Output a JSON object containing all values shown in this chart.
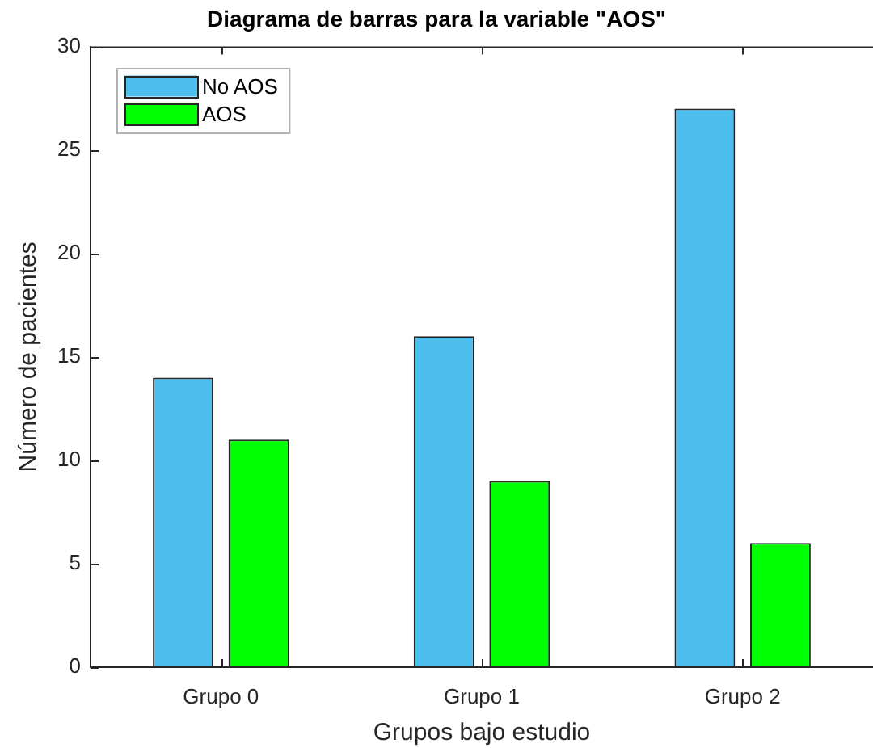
{
  "chart_data": {
    "type": "bar",
    "title": "Diagrama de barras para la variable \"AOS\"",
    "xlabel": "Grupos bajo estudio",
    "ylabel": "Número de pacientes",
    "categories": [
      "Grupo 0",
      "Grupo 1",
      "Grupo 2"
    ],
    "series": [
      {
        "name": "No AOS",
        "color": "#4dbeee",
        "values": [
          14,
          16,
          27
        ]
      },
      {
        "name": "AOS",
        "color": "#00ff00",
        "values": [
          11,
          9,
          6
        ]
      }
    ],
    "ylim": [
      0,
      30
    ],
    "yticks": [
      0,
      5,
      10,
      15,
      20,
      25,
      30
    ],
    "legend": "top left",
    "grid": false
  }
}
